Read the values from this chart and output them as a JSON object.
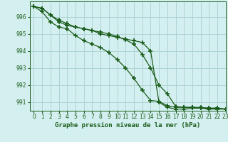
{
  "title": "Graphe pression niveau de la mer (hPa)",
  "bg_color": "#d4efef",
  "grid_color": "#aed4d4",
  "line_color": "#1a5c1a",
  "marker_color": "#1a5c1a",
  "xlim": [
    -0.5,
    23
  ],
  "ylim": [
    990.5,
    996.9
  ],
  "yticks": [
    991,
    992,
    993,
    994,
    995,
    996
  ],
  "xticks": [
    0,
    1,
    2,
    3,
    4,
    5,
    6,
    7,
    8,
    9,
    10,
    11,
    12,
    13,
    14,
    15,
    16,
    17,
    18,
    19,
    20,
    21,
    22,
    23
  ],
  "xlabel_fontsize": 6.5,
  "tick_fontsize": 5.5,
  "series": [
    [
      996.6,
      996.5,
      996.1,
      995.7,
      995.5,
      995.4,
      995.3,
      995.2,
      995.0,
      994.9,
      994.8,
      994.7,
      994.6,
      994.5,
      994.0,
      991.0,
      990.7,
      990.6,
      990.6,
      990.65,
      990.65,
      990.65,
      990.65,
      990.6
    ],
    [
      996.6,
      996.5,
      996.1,
      995.8,
      995.6,
      995.4,
      995.3,
      995.2,
      995.1,
      995.0,
      994.85,
      994.65,
      994.4,
      993.8,
      993.0,
      992.0,
      991.5,
      990.75,
      990.7,
      990.7,
      990.7,
      990.65,
      990.65,
      990.6
    ],
    [
      996.6,
      996.3,
      995.7,
      995.4,
      995.3,
      994.9,
      994.6,
      994.4,
      994.2,
      993.9,
      993.5,
      993.0,
      992.4,
      991.7,
      991.1,
      991.05,
      990.8,
      990.7,
      990.7,
      990.7,
      990.65,
      990.6,
      990.6,
      990.6
    ]
  ]
}
